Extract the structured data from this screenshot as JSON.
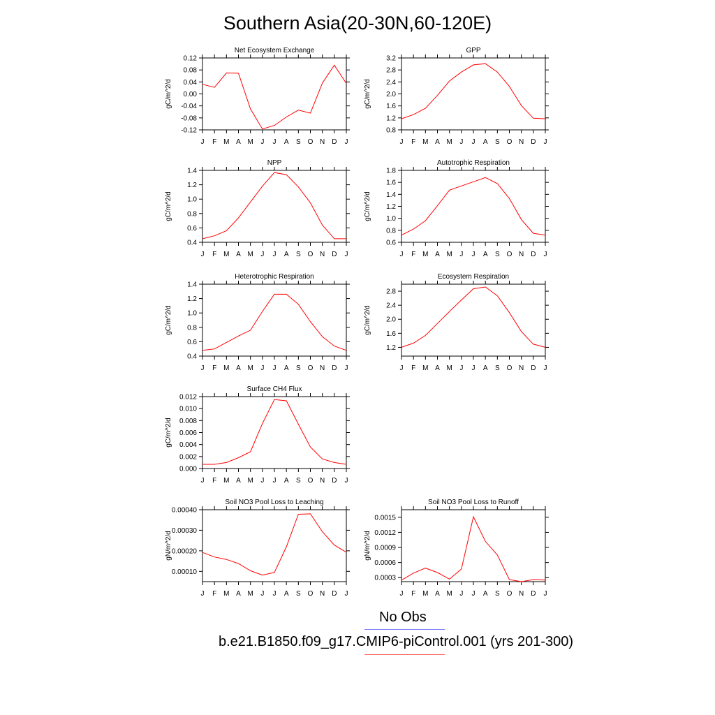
{
  "title": "Southern Asia(20-30N,60-120E)",
  "legend": {
    "obs_label": "No Obs",
    "obs_color": "#8080ff",
    "model_label": "b.e21.B1850.f09_g17.CMIP6-piControl.001 (yrs 201-300)",
    "model_color": "#ff6060"
  },
  "line_color": "#ff0000",
  "months": [
    "J",
    "F",
    "M",
    "A",
    "M",
    "J",
    "J",
    "A",
    "S",
    "O",
    "N",
    "D",
    "J"
  ],
  "chart_data": [
    {
      "type": "line",
      "title": "Net Ecosystem Exchange",
      "ylabel": "gC/m^2/d",
      "ylim": [
        -0.12,
        0.12
      ],
      "yticks": [
        -0.12,
        -0.08,
        -0.04,
        0.0,
        0.04,
        0.08,
        0.12
      ],
      "ytick_labels": [
        "-0.12",
        "-0.08",
        "-0.04",
        "0.00",
        "0.04",
        "0.08",
        "0.12"
      ],
      "values": [
        0.032,
        0.022,
        0.07,
        0.069,
        -0.05,
        -0.117,
        -0.105,
        -0.077,
        -0.054,
        -0.064,
        0.036,
        0.096,
        0.035
      ]
    },
    {
      "type": "line",
      "title": "GPP",
      "ylabel": "gC/m^2/d",
      "ylim": [
        0.8,
        3.2
      ],
      "yticks": [
        0.8,
        1.2,
        1.6,
        2.0,
        2.4,
        2.8,
        3.2
      ],
      "ytick_labels": [
        "0.8",
        "1.2",
        "1.6",
        "2.0",
        "2.4",
        "2.8",
        "3.2"
      ],
      "values": [
        1.17,
        1.31,
        1.52,
        1.95,
        2.43,
        2.73,
        2.97,
        3.01,
        2.73,
        2.25,
        1.61,
        1.19,
        1.17
      ]
    },
    {
      "type": "line",
      "title": "NPP",
      "ylabel": "gC/m^2/d",
      "ylim": [
        0.4,
        1.4
      ],
      "yticks": [
        0.4,
        0.6,
        0.8,
        1.0,
        1.2,
        1.4
      ],
      "ytick_labels": [
        "0.4",
        "0.6",
        "0.8",
        "1.0",
        "1.2",
        "1.4"
      ],
      "values": [
        0.45,
        0.49,
        0.56,
        0.74,
        0.96,
        1.18,
        1.37,
        1.34,
        1.17,
        0.95,
        0.64,
        0.45,
        0.45
      ]
    },
    {
      "type": "line",
      "title": "Autotrophic Respiration",
      "ylabel": "gC/m^2/d",
      "ylim": [
        0.6,
        1.8
      ],
      "yticks": [
        0.6,
        0.8,
        1.0,
        1.2,
        1.4,
        1.6,
        1.8
      ],
      "ytick_labels": [
        "0.6",
        "0.8",
        "1.0",
        "1.2",
        "1.4",
        "1.6",
        "1.8"
      ],
      "values": [
        0.72,
        0.82,
        0.96,
        1.21,
        1.47,
        1.54,
        1.61,
        1.68,
        1.58,
        1.33,
        0.98,
        0.75,
        0.72
      ]
    },
    {
      "type": "line",
      "title": "Heterotrophic Respiration",
      "ylabel": "gC/m^2/d",
      "ylim": [
        0.4,
        1.4
      ],
      "yticks": [
        0.4,
        0.6,
        0.8,
        1.0,
        1.2,
        1.4
      ],
      "ytick_labels": [
        "0.4",
        "0.6",
        "0.8",
        "1.0",
        "1.2",
        "1.4"
      ],
      "values": [
        0.48,
        0.5,
        0.59,
        0.68,
        0.76,
        1.02,
        1.26,
        1.26,
        1.12,
        0.88,
        0.67,
        0.54,
        0.48
      ]
    },
    {
      "type": "line",
      "title": "Ecosystem Respiration",
      "ylabel": "gC/m^2/d",
      "ylim": [
        0.95,
        3.0
      ],
      "yticks": [
        1.2,
        1.6,
        2.0,
        2.4,
        2.8
      ],
      "ytick_labels": [
        "1.2",
        "1.6",
        "2.0",
        "2.4",
        "2.8"
      ],
      "values": [
        1.2,
        1.32,
        1.54,
        1.88,
        2.22,
        2.55,
        2.87,
        2.92,
        2.67,
        2.19,
        1.65,
        1.29,
        1.2
      ]
    },
    {
      "type": "line",
      "title": "Surface CH4 Flux",
      "ylabel": "gC/m^2/d",
      "ylim": [
        0.0,
        0.012
      ],
      "yticks": [
        0.0,
        0.002,
        0.004,
        0.006,
        0.008,
        0.01,
        0.012
      ],
      "ytick_labels": [
        "0.000",
        "0.002",
        "0.004",
        "0.006",
        "0.008",
        "0.010",
        "0.012"
      ],
      "values": [
        0.0007,
        0.0007,
        0.001,
        0.0018,
        0.0028,
        0.0075,
        0.0115,
        0.0113,
        0.0074,
        0.0036,
        0.0016,
        0.001,
        0.0007
      ]
    },
    null,
    {
      "type": "line",
      "title": "Soil NO3 Pool Loss to Leaching",
      "ylabel": "gN/m^2/d",
      "ylim": [
        5e-05,
        0.0004
      ],
      "yticks": [
        0.0001,
        0.0002,
        0.0003,
        0.0004
      ],
      "ytick_labels": [
        "0.00010",
        "0.00020",
        "0.00030",
        "0.00040"
      ],
      "values": [
        0.000192,
        0.00017,
        0.000158,
        0.000138,
        0.000103,
        8.2e-05,
        9.5e-05,
        0.00022,
        0.000378,
        0.00038,
        0.000293,
        0.000228,
        0.000193
      ]
    },
    {
      "type": "line",
      "title": "Soil NO3 Pool Loss to Runoff",
      "ylabel": "gN/m^2/d",
      "ylim": [
        0.00022,
        0.00165
      ],
      "yticks": [
        0.0003,
        0.0006,
        0.0009,
        0.0012,
        0.0015
      ],
      "ytick_labels": [
        "0.0003",
        "0.0006",
        "0.0009",
        "0.0012",
        "0.0015"
      ],
      "values": [
        0.00025,
        0.00039,
        0.00049,
        0.0004,
        0.00027,
        0.00047,
        0.00151,
        0.00102,
        0.00075,
        0.00026,
        0.00022,
        0.00026,
        0.00025
      ]
    }
  ]
}
